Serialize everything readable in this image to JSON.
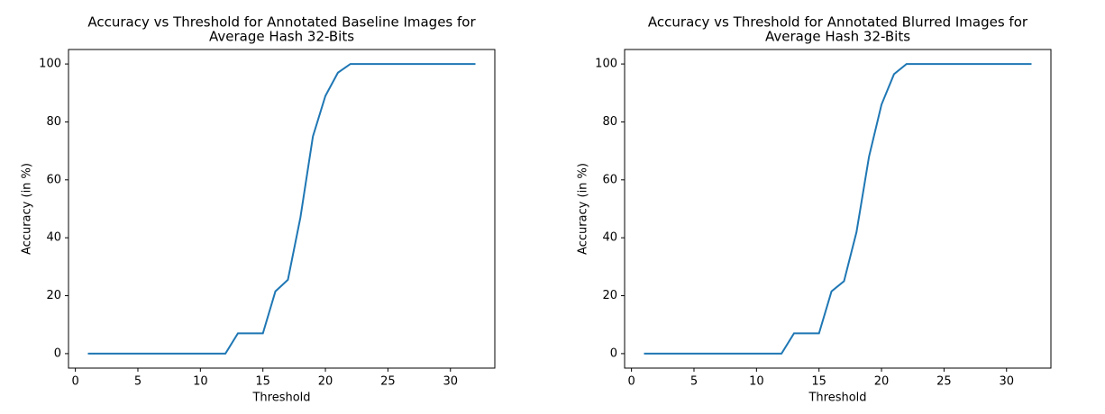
{
  "chart_data": [
    {
      "type": "line",
      "title": [
        "Accuracy vs Threshold for Annotated Baseline Images for",
        "Average Hash 32-Bits"
      ],
      "x_label": "Threshold",
      "y_label": "Accuracy (in %)",
      "x": [
        1,
        2,
        3,
        4,
        5,
        6,
        7,
        8,
        9,
        10,
        11,
        12,
        13,
        14,
        15,
        16,
        17,
        18,
        19,
        20,
        21,
        22,
        23,
        24,
        25,
        26,
        27,
        28,
        29,
        30,
        31,
        32
      ],
      "series": [
        {
          "color": "#1f77b4",
          "values": [
            0,
            0,
            0,
            0,
            0,
            0,
            0,
            0,
            0,
            0,
            0,
            0,
            7,
            7,
            7,
            21.5,
            25.5,
            47,
            75,
            89,
            97,
            100,
            100,
            100,
            100,
            100,
            100,
            100,
            100,
            100,
            100,
            100
          ]
        }
      ],
      "xlim": [
        -0.55,
        33.55
      ],
      "xticks": [
        0,
        5,
        10,
        15,
        20,
        25,
        30
      ],
      "ylim": [
        -5,
        105
      ],
      "yticks": [
        0,
        20,
        40,
        60,
        80,
        100
      ]
    },
    {
      "type": "line",
      "title": [
        "Accuracy vs Threshold for Annotated Blurred Images for",
        "Average Hash 32-Bits"
      ],
      "x_label": "Threshold",
      "y_label": "Accuracy (in %)",
      "x": [
        1,
        2,
        3,
        4,
        5,
        6,
        7,
        8,
        9,
        10,
        11,
        12,
        13,
        14,
        15,
        16,
        17,
        18,
        19,
        20,
        21,
        22,
        23,
        24,
        25,
        26,
        27,
        28,
        29,
        30,
        31,
        32
      ],
      "series": [
        {
          "color": "#1f77b4",
          "values": [
            0,
            0,
            0,
            0,
            0,
            0,
            0,
            0,
            0,
            0,
            0,
            0,
            7,
            7,
            7,
            21.5,
            25,
            42,
            68,
            86,
            96.5,
            100,
            100,
            100,
            100,
            100,
            100,
            100,
            100,
            100,
            100,
            100
          ]
        }
      ],
      "xlim": [
        -0.55,
        33.55
      ],
      "xticks": [
        0,
        5,
        10,
        15,
        20,
        25,
        30
      ],
      "ylim": [
        -5,
        105
      ],
      "yticks": [
        0,
        20,
        40,
        60,
        80,
        100
      ]
    }
  ]
}
